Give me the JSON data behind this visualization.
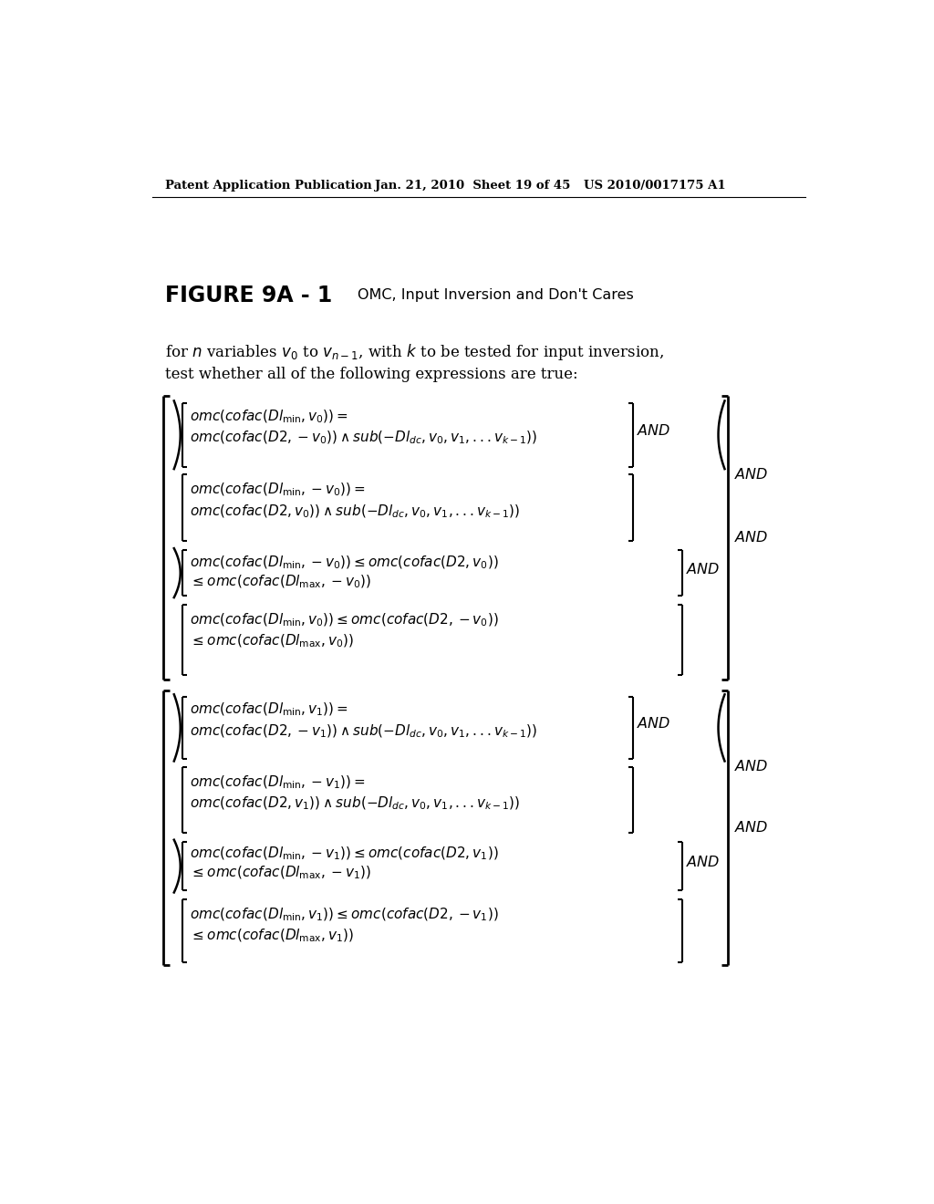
{
  "background_color": "#ffffff",
  "header_left": "Patent Application Publication",
  "header_center": "Jan. 21, 2010  Sheet 19 of 45",
  "header_right": "US 2010/0017175 A1",
  "figure_label": "FIGURE 9A - 1",
  "figure_caption": "OMC, Input Inversion and Don't Cares"
}
